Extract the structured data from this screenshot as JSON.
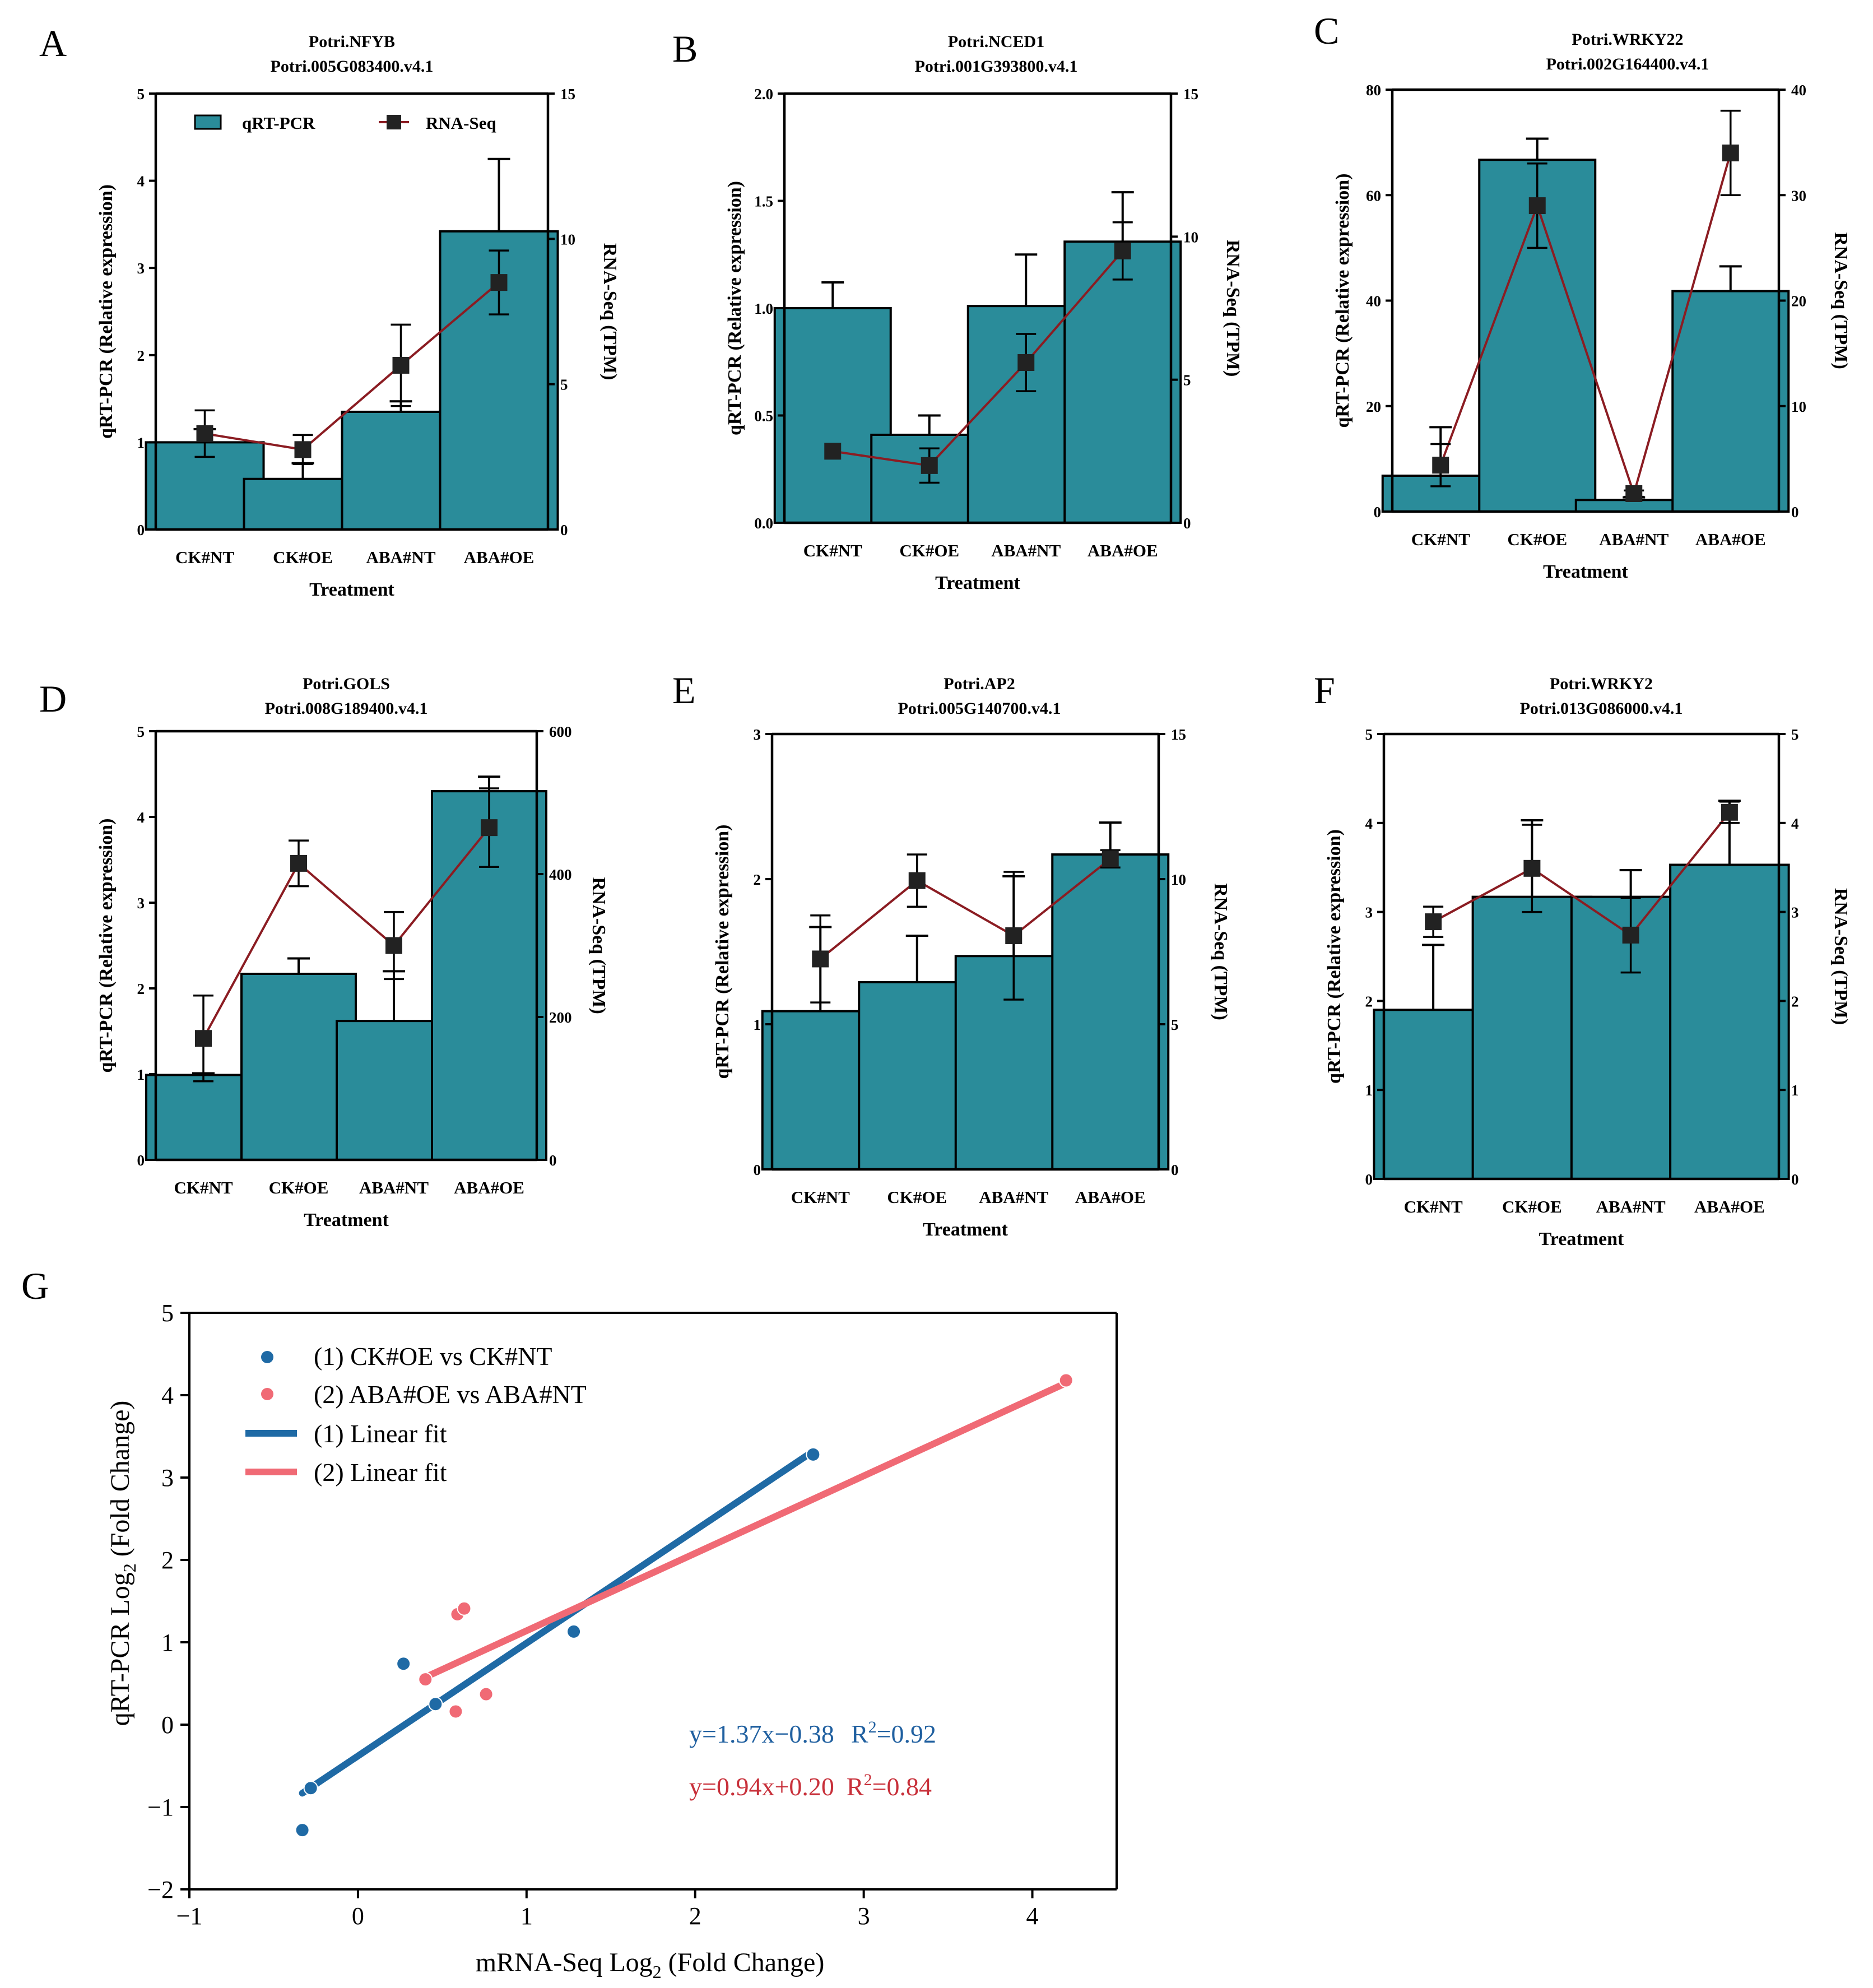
{
  "colors": {
    "bar": "#2a8c9a",
    "line": "#8b1c22",
    "marker": "#222222",
    "series1": "#1f6aa5",
    "series2": "#f06a75",
    "eq1": "#2060a0",
    "eq2": "#c8303a"
  },
  "legend": {
    "bar": "qRT-PCR",
    "line": "RNA-Seq"
  },
  "chart_data": [
    {
      "type": "bar",
      "panel": "A",
      "title": [
        "Potri.NFYB",
        "Potri.005G083400.v4.1"
      ],
      "categories": [
        "CK#NT",
        "CK#OE",
        "ABA#NT",
        "ABA#OE"
      ],
      "xlabel": "Treatment",
      "ylabel": "qRT-PCR (Relative expression)",
      "y2label": "RNA-Seq (TPM)",
      "ylim": [
        0,
        5
      ],
      "yticks": [
        0,
        1,
        2,
        3,
        4,
        5
      ],
      "yticklabels": [
        "0",
        "1",
        "2",
        "3",
        "4",
        "5"
      ],
      "y2lim": [
        0,
        15
      ],
      "y2ticks": [
        0,
        5,
        10,
        15
      ],
      "y2ticklabels": [
        "0",
        "5",
        "10",
        "15"
      ],
      "series": [
        {
          "name": "qRT-PCR",
          "kind": "bar",
          "values": [
            1.0,
            0.58,
            1.35,
            3.42
          ],
          "errors": [
            0.15,
            0.18,
            0.12,
            0.83
          ]
        },
        {
          "name": "RNA-Seq",
          "kind": "line",
          "values": [
            3.3,
            2.75,
            5.65,
            8.5
          ],
          "errors": [
            0.8,
            0.5,
            1.4,
            1.1
          ]
        }
      ]
    },
    {
      "type": "bar",
      "panel": "B",
      "title": [
        "Potri.NCED1",
        "Potri.001G393800.v4.1"
      ],
      "categories": [
        "CK#NT",
        "CK#OE",
        "ABA#NT",
        "ABA#OE"
      ],
      "xlabel": "Treatment",
      "ylabel": "qRT-PCR (Relative expression)",
      "y2label": "RNA-Seq (TPM)",
      "ylim": [
        0,
        2.0
      ],
      "yticks": [
        0,
        0.5,
        1.0,
        1.5,
        2.0
      ],
      "yticklabels": [
        "0.0",
        "0.5",
        "1.0",
        "1.5",
        "2.0"
      ],
      "y2lim": [
        0,
        15
      ],
      "y2ticks": [
        0,
        5,
        10,
        15
      ],
      "y2ticklabels": [
        "0",
        "5",
        "10",
        "15"
      ],
      "series": [
        {
          "name": "qRT-PCR",
          "kind": "bar",
          "values": [
            1.0,
            0.41,
            1.01,
            1.31
          ],
          "errors": [
            0.12,
            0.09,
            0.24,
            0.23
          ]
        },
        {
          "name": "RNA-Seq",
          "kind": "line",
          "values": [
            2.5,
            2.0,
            5.6,
            9.5
          ],
          "errors": [
            0,
            0.6,
            1.0,
            1.0
          ]
        }
      ]
    },
    {
      "type": "bar",
      "panel": "C",
      "title": [
        "Potri.WRKY22",
        "Potri.002G164400.v4.1"
      ],
      "categories": [
        "CK#NT",
        "CK#OE",
        "ABA#NT",
        "ABA#OE"
      ],
      "xlabel": "Treatment",
      "ylabel": "qRT-PCR (Relative expression)",
      "y2label": "RNA-Seq (TPM)",
      "ylim": [
        0,
        80
      ],
      "yticks": [
        0,
        20,
        40,
        60,
        80
      ],
      "yticklabels": [
        "0",
        "20",
        "40",
        "60",
        "80"
      ],
      "y2lim": [
        0,
        40
      ],
      "y2ticks": [
        0,
        10,
        20,
        30,
        40
      ],
      "y2ticklabels": [
        "0",
        "10",
        "20",
        "30",
        "40"
      ],
      "series": [
        {
          "name": "qRT-PCR",
          "kind": "bar",
          "values": [
            6.8,
            66.7,
            2.2,
            41.8
          ],
          "errors": [
            9.2,
            4.0,
            0.5,
            4.7
          ]
        },
        {
          "name": "RNA-Seq",
          "kind": "line",
          "values": [
            4.4,
            29.0,
            1.7,
            34.0
          ],
          "errors": [
            2.0,
            4.0,
            0.3,
            4.0
          ]
        }
      ]
    },
    {
      "type": "bar",
      "panel": "D",
      "title": [
        "Potri.GOLS",
        "Potri.008G189400.v4.1"
      ],
      "categories": [
        "CK#NT",
        "CK#OE",
        "ABA#NT",
        "ABA#OE"
      ],
      "xlabel": "Treatment",
      "ylabel": "qRT-PCR (Relative expression)",
      "y2label": "RNA-Seq (TPM)",
      "ylim": [
        0,
        5
      ],
      "yticks": [
        0,
        1,
        2,
        3,
        4,
        5
      ],
      "yticklabels": [
        "0",
        "1",
        "2",
        "3",
        "4",
        "5"
      ],
      "y2lim": [
        0,
        600
      ],
      "y2ticks": [
        0,
        200,
        400,
        600
      ],
      "y2ticklabels": [
        "0",
        "200",
        "400",
        "600"
      ],
      "series": [
        {
          "name": "qRT-PCR",
          "kind": "bar",
          "values": [
            0.99,
            2.17,
            1.62,
            4.3
          ],
          "errors": [
            0.02,
            0.18,
            0.58,
            0.17
          ]
        },
        {
          "name": "RNA-Seq",
          "kind": "line",
          "values": [
            170,
            415,
            300,
            465
          ],
          "errors": [
            60,
            32,
            47,
            55
          ]
        }
      ]
    },
    {
      "type": "bar",
      "panel": "E",
      "title": [
        "Potri.AP2",
        "Potri.005G140700.v4.1"
      ],
      "categories": [
        "CK#NT",
        "CK#OE",
        "ABA#NT",
        "ABA#OE"
      ],
      "xlabel": "Treatment",
      "ylabel": "qRT-PCR (Relative expression)",
      "y2label": "RNA-Seq (TPM)",
      "ylim": [
        0,
        3
      ],
      "yticks": [
        0,
        1,
        2,
        3
      ],
      "yticklabels": [
        "0",
        "1",
        "2",
        "3"
      ],
      "y2lim": [
        0,
        15
      ],
      "y2ticks": [
        0,
        5,
        10,
        15
      ],
      "y2ticklabels": [
        "0",
        "5",
        "10",
        "15"
      ],
      "series": [
        {
          "name": "qRT-PCR",
          "kind": "bar",
          "values": [
            1.09,
            1.29,
            1.47,
            2.17
          ],
          "errors": [
            0.58,
            0.32,
            0.55,
            0.22
          ]
        },
        {
          "name": "RNA-Seq",
          "kind": "line",
          "values": [
            7.25,
            9.95,
            8.05,
            10.7
          ],
          "errors": [
            1.5,
            0.9,
            2.2,
            0.3
          ]
        }
      ]
    },
    {
      "type": "bar",
      "panel": "F",
      "title": [
        "Potri.WRKY2",
        "Potri.013G086000.v4.1"
      ],
      "categories": [
        "CK#NT",
        "CK#OE",
        "ABA#NT",
        "ABA#OE"
      ],
      "xlabel": "Treatment",
      "ylabel": "qRT-PCR (Relative expression)",
      "y2label": "RNA-Seq (TPM)",
      "ylim": [
        0,
        5
      ],
      "yticks": [
        0,
        1,
        2,
        3,
        4,
        5
      ],
      "yticklabels": [
        "0",
        "1",
        "2",
        "3",
        "4",
        "5"
      ],
      "y2lim": [
        0,
        5
      ],
      "y2ticks": [
        0,
        1,
        2,
        3,
        4,
        5
      ],
      "y2ticklabels": [
        "0",
        "1",
        "2",
        "3",
        "4",
        "5"
      ],
      "series": [
        {
          "name": "qRT-PCR",
          "kind": "bar",
          "values": [
            1.9,
            3.17,
            3.17,
            3.53
          ],
          "errors": [
            0.73,
            0.86,
            0.3,
            0.72
          ]
        },
        {
          "name": "RNA-Seq",
          "kind": "line",
          "values": [
            2.89,
            3.49,
            2.74,
            4.12
          ],
          "errors": [
            0.17,
            0.49,
            0.42,
            0.12
          ]
        }
      ]
    },
    {
      "type": "scatter",
      "panel": "G",
      "xlabel": "mRNA-Seq  Log",
      "xlabel_sub": "2",
      "xlabel_tail": " (Fold Change)",
      "ylabel": "qRT-PCR  Log",
      "ylabel_sub": "2",
      "ylabel_tail": " (Fold Change)",
      "xlim": [
        -1,
        4.5
      ],
      "xticks": [
        -1,
        0,
        1,
        2,
        3,
        4
      ],
      "xticklabels": [
        "−1",
        "0",
        "1",
        "2",
        "3",
        "4"
      ],
      "ylim": [
        -2,
        5
      ],
      "yticks": [
        -2,
        -1,
        0,
        1,
        2,
        3,
        4,
        5
      ],
      "yticklabels": [
        "−2",
        "−1",
        "0",
        "1",
        "2",
        "3",
        "4",
        "5"
      ],
      "series": [
        {
          "name": "(1) CK#OE vs CK#NT",
          "points": [
            [
              -0.33,
              -1.28
            ],
            [
              -0.28,
              -0.77
            ],
            [
              0.27,
              0.74
            ],
            [
              0.46,
              0.25
            ],
            [
              1.28,
              1.13
            ],
            [
              2.7,
              3.28
            ]
          ]
        },
        {
          "name": "(2) ABA#OE vs ABA#NT",
          "points": [
            [
              0.4,
              0.55
            ],
            [
              0.58,
              0.16
            ],
            [
              0.59,
              1.34
            ],
            [
              0.63,
              1.41
            ],
            [
              0.76,
              0.37
            ],
            [
              4.2,
              4.18
            ]
          ]
        }
      ],
      "fits": [
        {
          "name": "(1) Linear fit",
          "slope": 1.37,
          "intercept": -0.38,
          "x_range": [
            -0.33,
            2.7
          ],
          "equation": "y=1.37x−0.38",
          "r2_label": "R",
          "r2_sup": "2",
          "r2_value": "=0.92"
        },
        {
          "name": "(2) Linear fit",
          "slope": 0.94,
          "intercept": 0.2,
          "x_range": [
            0.4,
            4.2
          ],
          "equation": "y=0.94x+0.20",
          "r2_label": "R",
          "r2_sup": "2",
          "r2_value": "=0.84"
        }
      ]
    }
  ]
}
